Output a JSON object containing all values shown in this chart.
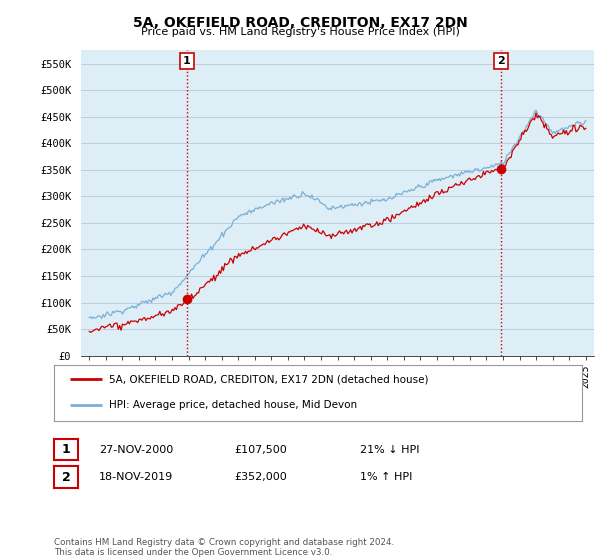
{
  "title": "5A, OKEFIELD ROAD, CREDITON, EX17 2DN",
  "subtitle": "Price paid vs. HM Land Registry's House Price Index (HPI)",
  "ylabel_ticks": [
    "£0",
    "£50K",
    "£100K",
    "£150K",
    "£200K",
    "£250K",
    "£300K",
    "£350K",
    "£400K",
    "£450K",
    "£500K",
    "£550K"
  ],
  "ylabel_values": [
    0,
    50000,
    100000,
    150000,
    200000,
    250000,
    300000,
    350000,
    400000,
    450000,
    500000,
    550000
  ],
  "ylim": [
    0,
    575000
  ],
  "xlim_years": [
    1994.5,
    2025.5
  ],
  "hpi_color": "#7ab0d4",
  "hpi_fill_color": "#ddeef7",
  "price_color": "#cc0000",
  "vline_color": "#cc0000",
  "point1_year": 2000.9,
  "point1_price": 107500,
  "point2_year": 2019.88,
  "point2_price": 352000,
  "legend_label1": "5A, OKEFIELD ROAD, CREDITON, EX17 2DN (detached house)",
  "legend_label2": "HPI: Average price, detached house, Mid Devon",
  "annotation1_label": "1",
  "annotation1_date": "27-NOV-2000",
  "annotation1_price": "£107,500",
  "annotation1_pct": "21% ↓ HPI",
  "annotation2_label": "2",
  "annotation2_date": "18-NOV-2019",
  "annotation2_price": "£352,000",
  "annotation2_pct": "1% ↑ HPI",
  "footer": "Contains HM Land Registry data © Crown copyright and database right 2024.\nThis data is licensed under the Open Government Licence v3.0.",
  "background_color": "#ffffff",
  "plot_bg_color": "#ddeef7",
  "grid_color": "#bbccdd"
}
